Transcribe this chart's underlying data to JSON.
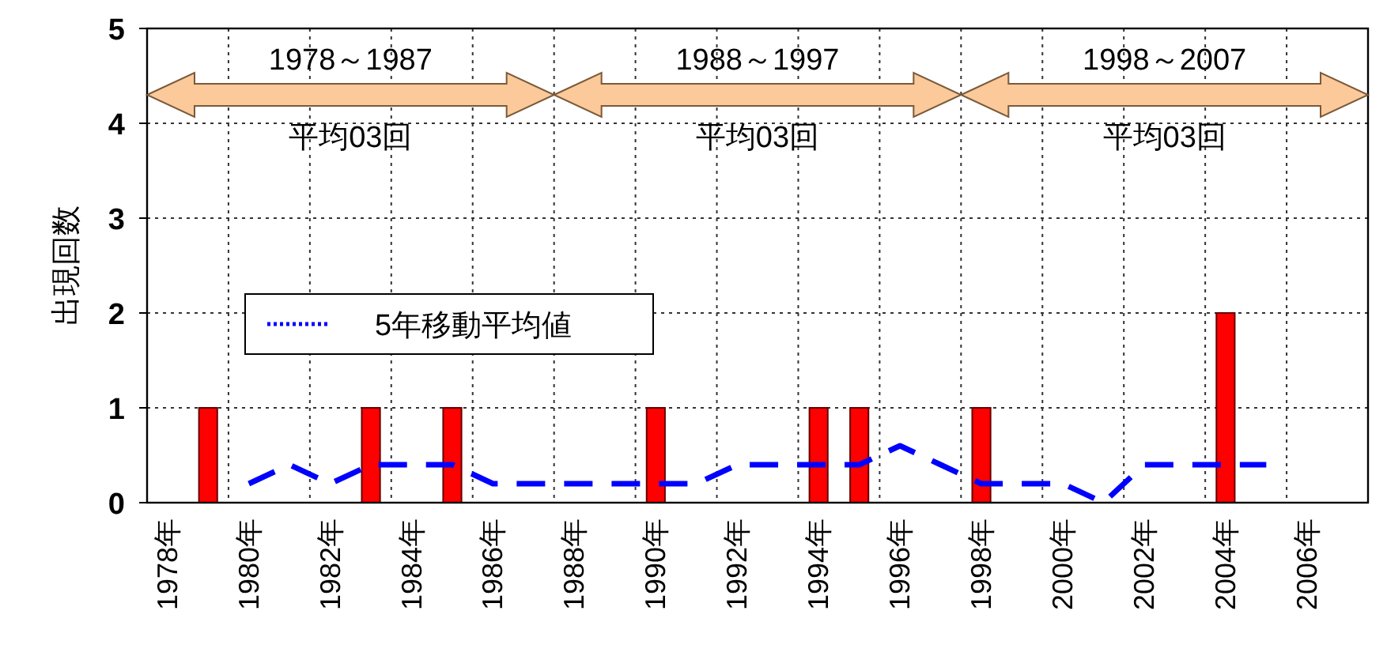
{
  "chart_data": {
    "type": "bar",
    "ylabel": "出現回数",
    "categories": [
      "1978年",
      null,
      "1980年",
      null,
      "1982年",
      null,
      "1984年",
      null,
      "1986年",
      null,
      "1988年",
      null,
      "1990年",
      null,
      "1992年",
      null,
      "1994年",
      null,
      "1996年",
      null,
      "1998年",
      null,
      "2000年",
      null,
      "2002年",
      null,
      "2004年",
      null,
      "2006年",
      null
    ],
    "series": [
      {
        "color": "#ff0000",
        "values": [
          0,
          1,
          0,
          0,
          0,
          1,
          0,
          1,
          0,
          0,
          0,
          0,
          1,
          0,
          0,
          0,
          1,
          1,
          0,
          0,
          1,
          0,
          0,
          0,
          0,
          0,
          2,
          0,
          0,
          0
        ]
      },
      {
        "type": "line",
        "name": "5年移動平均値",
        "color": "#0000ff",
        "line_style": "dashed",
        "values": [
          null,
          null,
          0.2,
          0.4,
          0.2,
          0.4,
          0.4,
          0.4,
          0.2,
          0.2,
          0.2,
          0.2,
          0.2,
          0.2,
          0.4,
          0.4,
          0.4,
          0.4,
          0.6,
          0.4,
          0.2,
          0.2,
          0.2,
          0,
          0.4,
          0.4,
          0.4,
          0.4,
          null,
          null
        ]
      }
    ],
    "ylim": [
      0,
      5
    ],
    "yticks": [
      0,
      1,
      2,
      3,
      4,
      5
    ],
    "grid": true,
    "legend": "left",
    "annotations": [
      "1978～1987",
      "平均03回",
      "1988～1997",
      "平均03回",
      "1998～2007",
      "平均03回"
    ]
  }
}
